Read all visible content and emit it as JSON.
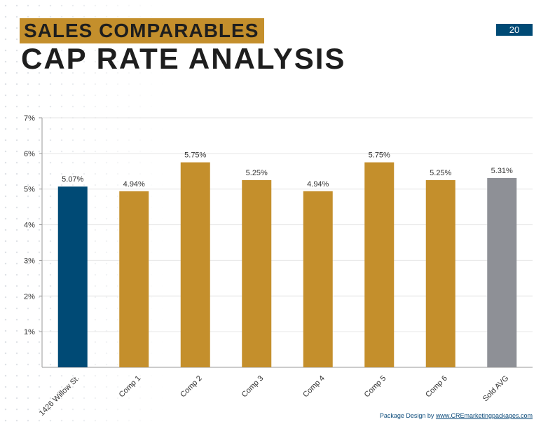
{
  "header": {
    "section_label": "SALES COMPARABLES",
    "title": "CAP RATE ANALYSIS",
    "page_number": "20"
  },
  "footer": {
    "prefix": "Package Design by ",
    "link": "www.CREmarketingpackages.com"
  },
  "colors": {
    "subject": "#004a75",
    "comp": "#c48f2c",
    "average": "#8e9096",
    "axis": "#999999",
    "grid": "#e6e6e6",
    "text": "#333333"
  },
  "chart_data": {
    "type": "bar",
    "categories": [
      "1426 Willow St.",
      "Comp 1",
      "Comp 2",
      "Comp 3",
      "Comp 4",
      "Comp 5",
      "Comp 6",
      "Sold AVG"
    ],
    "values": [
      5.07,
      4.94,
      5.75,
      5.25,
      4.94,
      5.75,
      5.25,
      5.31
    ],
    "data_labels": [
      "5.07%",
      "4.94%",
      "5.75%",
      "5.25%",
      "4.94%",
      "5.75%",
      "5.25%",
      "5.31%"
    ],
    "bar_color_roles": [
      "subject",
      "comp",
      "comp",
      "comp",
      "comp",
      "comp",
      "comp",
      "average"
    ],
    "ylim": [
      0,
      7
    ],
    "yticks": [
      1,
      2,
      3,
      4,
      5,
      6,
      7
    ],
    "ytick_labels": [
      "1%",
      "2%",
      "3%",
      "4%",
      "5%",
      "6%",
      "7%"
    ],
    "grid": true,
    "legend": "none",
    "title": "",
    "xlabel": "",
    "ylabel": ""
  }
}
